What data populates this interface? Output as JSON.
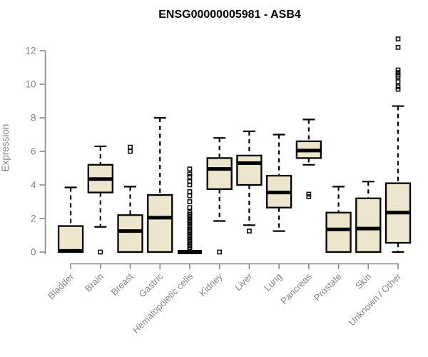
{
  "colors": {
    "background": "#ffffff",
    "box_fill": "#ede6cc",
    "box_stroke": "#000000",
    "median_stroke": "#000000",
    "axis_line": "#888888",
    "axis_text": "#848484",
    "title_text": "#000000"
  },
  "chart_data": {
    "type": "boxplot",
    "title": "ENSG00000005981 - ASB4",
    "xlabel": "",
    "ylabel": "Expression",
    "ylim": [
      0,
      13
    ],
    "yticks": [
      0,
      2,
      4,
      6,
      8,
      10,
      12
    ],
    "grid": false,
    "legend": "none",
    "categories": [
      "Bladder",
      "Brain",
      "Breast",
      "Gastric",
      "Hematopoietic cells",
      "Kidney",
      "Liver",
      "Lung",
      "Pancreas",
      "Prostate",
      "Skin",
      "Unknown / Other"
    ],
    "series": [
      {
        "category": "Bladder",
        "q1": 0,
        "median": 0.07,
        "q3": 1.55,
        "whisker_low": null,
        "whisker_high": 3.85,
        "outliers": []
      },
      {
        "category": "Brain",
        "q1": 3.55,
        "median": 4.35,
        "q3": 5.2,
        "whisker_low": 1.5,
        "whisker_high": 6.3,
        "outliers": [
          0
        ]
      },
      {
        "category": "Breast",
        "q1": 0,
        "median": 1.25,
        "q3": 2.2,
        "whisker_low": null,
        "whisker_high": 3.9,
        "outliers": [
          6.0,
          6.25
        ]
      },
      {
        "category": "Gastric",
        "q1": 0,
        "median": 2.05,
        "q3": 3.4,
        "whisker_low": null,
        "whisker_high": 8.0,
        "outliers": []
      },
      {
        "category": "Hematopoietic cells",
        "q1": 0,
        "median": 0,
        "q3": 0,
        "whisker_low": null,
        "whisker_high": null,
        "outliers": [
          4.95,
          4.65,
          4.5,
          4.2,
          4.0,
          3.6,
          3.35,
          3.0,
          2.65,
          2.35,
          2.25,
          2.15,
          2.05,
          1.95,
          1.85,
          1.75,
          1.65,
          1.55,
          1.45,
          1.35,
          1.25,
          1.15,
          1.05,
          0.95,
          0.85,
          0.75,
          0.65,
          0.55,
          0.45,
          0.35,
          0.25,
          0.15
        ]
      },
      {
        "category": "Kidney",
        "q1": 3.75,
        "median": 4.95,
        "q3": 5.6,
        "whisker_low": 1.85,
        "whisker_high": 6.8,
        "outliers": [
          0
        ]
      },
      {
        "category": "Liver",
        "q1": 4.0,
        "median": 5.3,
        "q3": 5.75,
        "whisker_low": 1.6,
        "whisker_high": 7.2,
        "outliers": [
          1.25
        ]
      },
      {
        "category": "Lung",
        "q1": 2.65,
        "median": 3.55,
        "q3": 4.55,
        "whisker_low": 1.25,
        "whisker_high": 7.0,
        "outliers": []
      },
      {
        "category": "Pancreas",
        "q1": 5.6,
        "median": 6.05,
        "q3": 6.6,
        "whisker_low": 5.2,
        "whisker_high": 7.9,
        "outliers": [
          3.3,
          3.45
        ]
      },
      {
        "category": "Prostate",
        "q1": 0,
        "median": 1.35,
        "q3": 2.35,
        "whisker_low": null,
        "whisker_high": 3.9,
        "outliers": []
      },
      {
        "category": "Skin",
        "q1": 0,
        "median": 1.4,
        "q3": 3.2,
        "whisker_low": null,
        "whisker_high": 4.2,
        "outliers": []
      },
      {
        "category": "Unknown / Other",
        "q1": 0.55,
        "median": 2.35,
        "q3": 4.1,
        "whisker_low": 0,
        "whisker_high": 8.7,
        "outliers": [
          9.7,
          9.85,
          10.15,
          10.45,
          10.55,
          10.7,
          10.85,
          12.2,
          12.7
        ]
      }
    ]
  }
}
